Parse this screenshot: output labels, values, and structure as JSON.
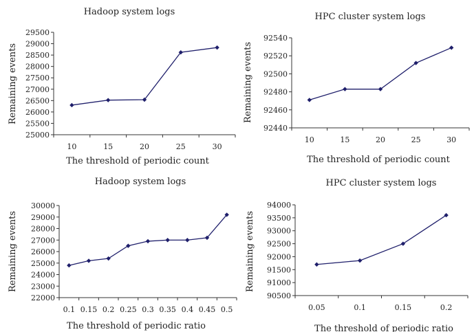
{
  "chart_data": [
    {
      "type": "line",
      "title": "Hadoop system logs",
      "xlabel": "The threshold of periodic count",
      "ylabel": "Remaining events",
      "categories": [
        "10",
        "15",
        "20",
        "25",
        "30"
      ],
      "yticks": [
        25000,
        25500,
        26000,
        26500,
        27000,
        27500,
        28000,
        28500,
        29000,
        29500
      ],
      "ylim": [
        25000,
        29500
      ],
      "series": [
        {
          "values": [
            26300,
            26520,
            26540,
            28620,
            28830
          ]
        }
      ],
      "grid": false,
      "color": "#1f1f6b"
    },
    {
      "type": "line",
      "title": "HPC cluster system logs",
      "xlabel": "The threshold of periodic count",
      "ylabel": "Remaining events",
      "categories": [
        "10",
        "15",
        "20",
        "25",
        "30"
      ],
      "yticks": [
        92440,
        92460,
        92480,
        92500,
        92520,
        92540
      ],
      "ylim": [
        92440,
        92540
      ],
      "series": [
        {
          "values": [
            92471,
            92483,
            92483,
            92512,
            92529
          ]
        }
      ],
      "grid": false,
      "color": "#1f1f6b"
    },
    {
      "type": "line",
      "title": "Hadoop system logs",
      "xlabel": "The threshold of periodic ratio",
      "ylabel": "Remaining events",
      "categories": [
        "0.1",
        "0.15",
        "0.2",
        "0.25",
        "0.3",
        "0.35",
        "0.4",
        "0.45",
        "0.5"
      ],
      "yticks": [
        22000,
        23000,
        24000,
        25000,
        26000,
        27000,
        28000,
        29000,
        30000
      ],
      "ylim": [
        22000,
        30000
      ],
      "series": [
        {
          "values": [
            24800,
            25200,
            25400,
            26500,
            26900,
            27000,
            27000,
            27200,
            29200
          ]
        }
      ],
      "grid": false,
      "color": "#1f1f6b"
    },
    {
      "type": "line",
      "title": "HPC cluster system logs",
      "xlabel": "The threshold of periodic ratio",
      "ylabel": "Remaining events",
      "categories": [
        "0.05",
        "0.1",
        "0.15",
        "0.2"
      ],
      "yticks": [
        90500,
        91000,
        91500,
        92000,
        92500,
        93000,
        93500,
        94000
      ],
      "ylim": [
        90500,
        94000
      ],
      "series": [
        {
          "values": [
            91700,
            91850,
            92500,
            93600
          ]
        }
      ],
      "grid": false,
      "color": "#1f1f6b"
    }
  ]
}
